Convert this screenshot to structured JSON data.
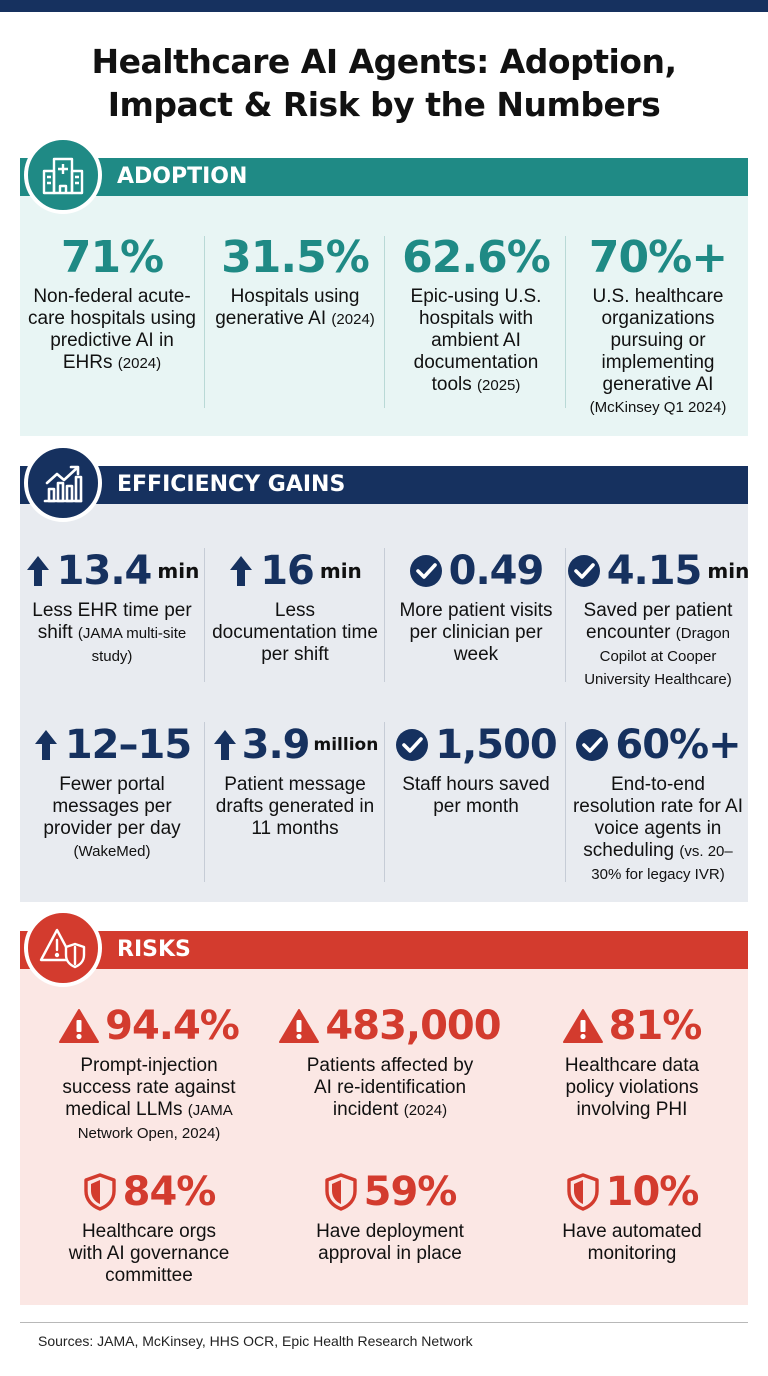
{
  "title_line1": "Healthcare AI Agents: Adoption,",
  "title_line2": "Impact & Risk by the Numbers",
  "colors": {
    "navy": "#16315f",
    "teal": "#1f8a85",
    "red": "#d33b2e",
    "teal_bg": "#e8f5f4",
    "navy_bg": "#e8ebf0",
    "red_bg": "#fbe7e4"
  },
  "adoption": {
    "heading": "ADOPTION",
    "icon": "hospital-icon",
    "stats": [
      {
        "value": "71%",
        "label": "Non-federal acute-care hospitals using predictive AI in EHRs",
        "source": "(2024)"
      },
      {
        "value": "31.5%",
        "label": "Hospitals using generative AI",
        "source": "(2024)"
      },
      {
        "value": "62.6%",
        "label": "Epic-using U.S. hospitals with ambient AI documentation tools",
        "source": "(2025)"
      },
      {
        "value": "70%+",
        "label": "U.S. healthcare organizations pursuing or implementing generative AI",
        "source": "(McKinsey Q1 2024)"
      }
    ]
  },
  "efficiency": {
    "heading": "EFFICIENCY GAINS",
    "icon": "trend-up-chart-icon",
    "stats": [
      {
        "icon": "arrow-up-icon",
        "value": "13.4",
        "unit": "min",
        "label": "Less EHR time per shift",
        "source": "(JAMA multi-site study)"
      },
      {
        "icon": "arrow-up-icon",
        "value": "16",
        "unit": "min",
        "label": "Less documentation time per shift",
        "source": ""
      },
      {
        "icon": "check-circle-icon",
        "value": "0.49",
        "unit": "",
        "label": "More patient visits per clinician per week",
        "source": ""
      },
      {
        "icon": "check-circle-icon",
        "value": "4.15",
        "unit": "min",
        "label": "Saved per patient encounter",
        "source": "(Dragon Copilot at Cooper University Healthcare)"
      },
      {
        "icon": "arrow-up-icon",
        "value": "12–15",
        "unit": "",
        "label": "Fewer portal messages per provider per day",
        "source": "(WakeMed)"
      },
      {
        "icon": "arrow-up-icon",
        "value": "3.9",
        "unit": "million",
        "label": "Patient message drafts generated in 11 months",
        "source": ""
      },
      {
        "icon": "check-circle-icon",
        "value": "1,500",
        "unit": "",
        "label": "Staff hours saved per month",
        "source": ""
      },
      {
        "icon": "check-circle-icon",
        "value": "60%+",
        "unit": "",
        "label": "End-to-end resolution rate for AI voice agents in scheduling",
        "source": "(vs. 20–30% for legacy IVR)"
      }
    ]
  },
  "risks": {
    "heading": "RISKS",
    "icon": "warning-shield-icon",
    "stats": [
      {
        "icon": "warning-icon",
        "value": "94.4%",
        "label": "Prompt-injection success rate against medical LLMs",
        "source": "(JAMA Network Open, 2024)"
      },
      {
        "icon": "warning-icon",
        "value": "483,000",
        "label": "Patients affected by AI re-identification incident",
        "source": "(2024)"
      },
      {
        "icon": "warning-icon",
        "value": "81%",
        "label": "Healthcare data policy violations involving PHI",
        "source": ""
      },
      {
        "icon": "shield-icon",
        "value": "84%",
        "label": "Healthcare orgs with AI governance committee",
        "source": ""
      },
      {
        "icon": "shield-icon",
        "value": "59%",
        "label": "Have deployment approval in place",
        "source": ""
      },
      {
        "icon": "shield-icon",
        "value": "10%",
        "label": "Have automated monitoring",
        "source": ""
      }
    ]
  },
  "footer": "Sources: JAMA, McKinsey, HHS OCR, Epic Health Research Network"
}
